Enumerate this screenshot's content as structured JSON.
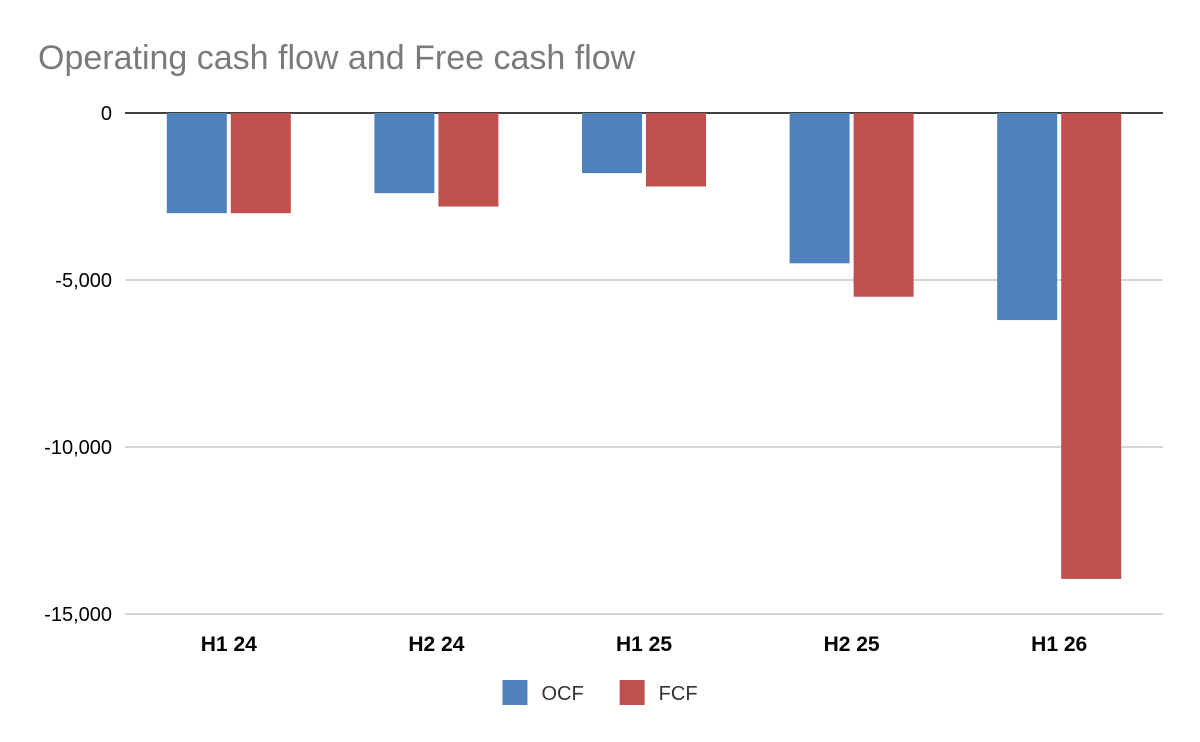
{
  "chart_data": {
    "type": "bar",
    "title": "Operating cash flow and Free cash flow",
    "xlabel": "",
    "ylabel": "",
    "categories": [
      "H1 24",
      "H2 24",
      "H1 25",
      "H2 25",
      "H1 26"
    ],
    "series": [
      {
        "name": "OCF",
        "color": "#4f81bd",
        "values": [
          -3000,
          -2400,
          -1800,
          -4500,
          -6200
        ]
      },
      {
        "name": "FCF",
        "color": "#c0504d",
        "values": [
          -3000,
          -2800,
          -2200,
          -5500,
          -13950
        ]
      }
    ],
    "ylim": [
      -15000,
      0
    ],
    "yticks": [
      0,
      -5000,
      -10000,
      -15000
    ],
    "ytick_labels": [
      "0",
      "-5,000",
      "-10,000",
      "-15,000"
    ],
    "grid": true,
    "legend": "bottom-center"
  }
}
